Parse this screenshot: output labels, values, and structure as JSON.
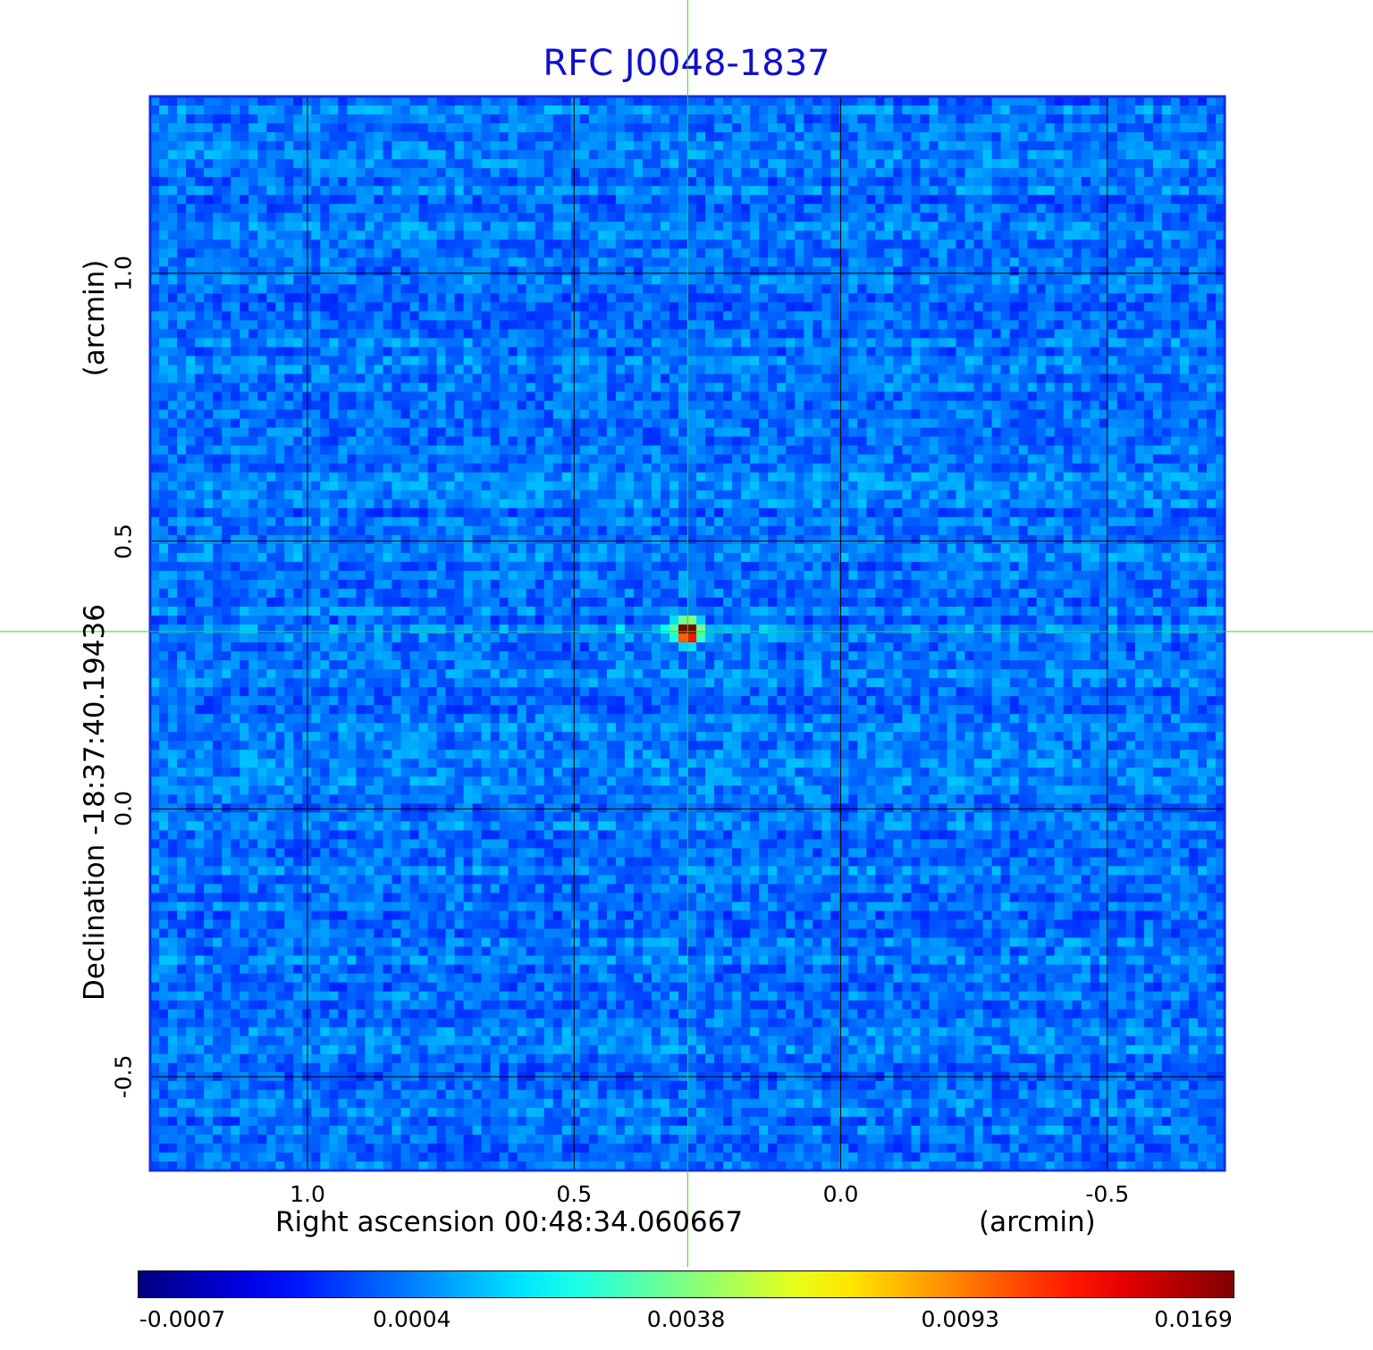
{
  "chart_data": {
    "type": "heatmap",
    "title": "RFC J0048-1837",
    "xlabel": "Right ascension  00:48:34.060667",
    "xunit": "(arcmin)",
    "ylabel": "Declination  -18:37:40.19436",
    "yunit": "(arcmin)",
    "x_ticks": [
      "1.0",
      "0.5",
      "0.0",
      "-0.5"
    ],
    "x_tick_values": [
      1.0,
      0.5,
      0.0,
      -0.5
    ],
    "y_ticks": [
      "1.0",
      "0.5",
      "0.0",
      "-0.5"
    ],
    "y_tick_values": [
      1.0,
      0.5,
      0.0,
      -0.5
    ],
    "xlim": [
      1.295,
      -0.72
    ],
    "ylim": [
      -0.675,
      1.33
    ],
    "grid": true,
    "crosshair": {
      "x": 0.287,
      "y": 0.331
    },
    "peak_position": {
      "x": 0.287,
      "y": 0.331
    },
    "colormap": "jet",
    "colorbar_ticks": [
      "-0.0007",
      "0.0004",
      "0.0038",
      "0.0093",
      "0.0169"
    ],
    "colorbar_range": [
      -0.0007,
      0.0169
    ]
  },
  "colors": {
    "title": "#1010cc",
    "crosshair": "#22dd22",
    "grid": "#000000",
    "frame": "#1030e0",
    "background_pixel": "#1e64f0"
  }
}
